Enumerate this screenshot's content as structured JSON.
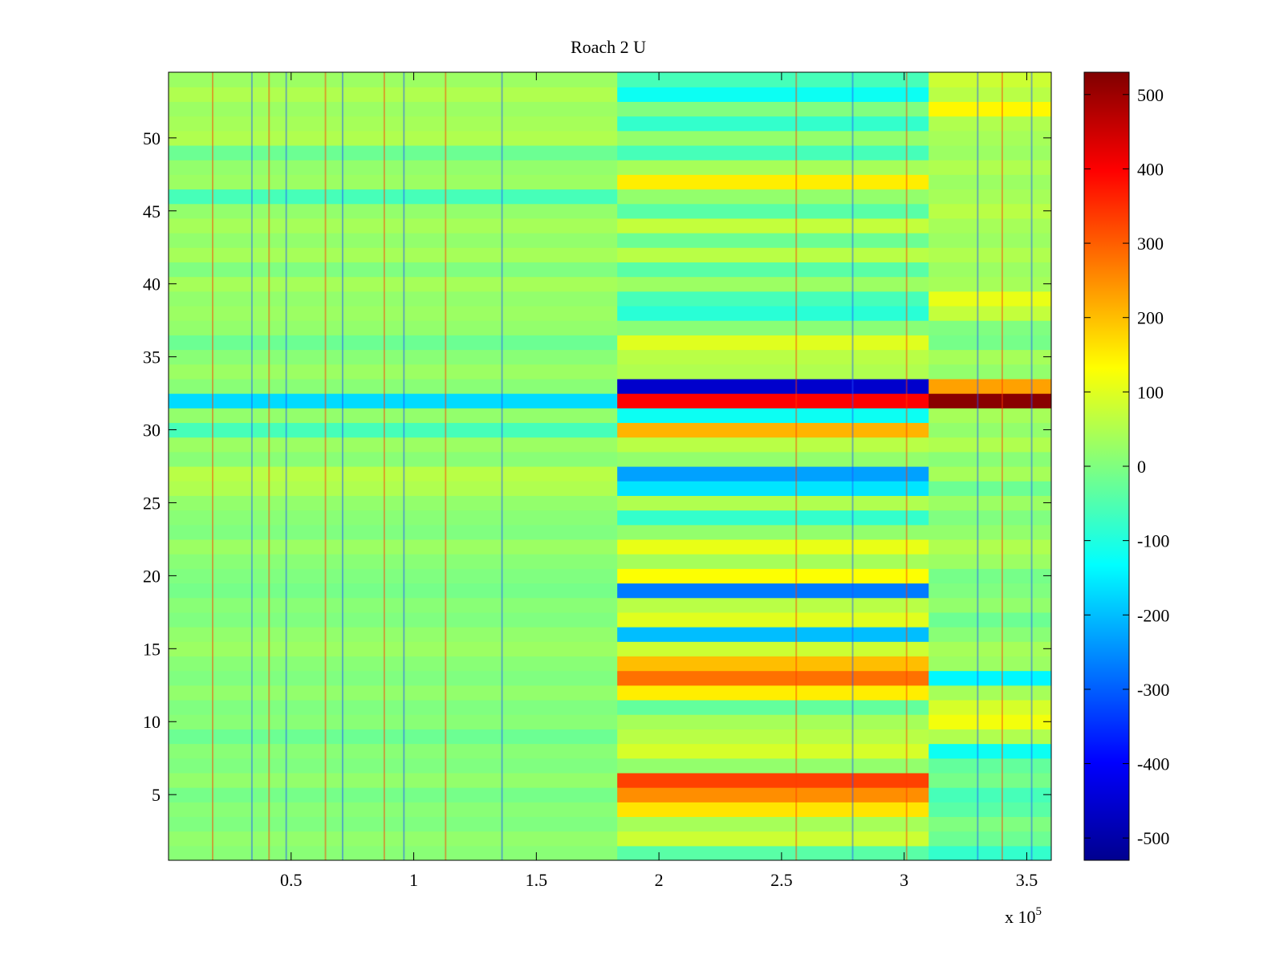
{
  "chart_data": {
    "type": "heatmap",
    "title": "Roach 2 U",
    "xlabel": "",
    "ylabel": "",
    "x_exponent_label": "x 10",
    "x_exponent_power": "5",
    "xlim": [
      0,
      3.6
    ],
    "ylim": [
      0.5,
      54.5
    ],
    "clim": [
      -530,
      530
    ],
    "colormap": "jet",
    "x_ticks": [
      0.5,
      1,
      1.5,
      2,
      2.5,
      3,
      3.5
    ],
    "x_tick_labels": [
      "0.5",
      "1",
      "1.5",
      "2",
      "2.5",
      "3",
      "3.5"
    ],
    "y_ticks": [
      5,
      10,
      15,
      20,
      25,
      30,
      35,
      40,
      45,
      50
    ],
    "y_tick_labels": [
      "5",
      "10",
      "15",
      "20",
      "25",
      "30",
      "35",
      "40",
      "45",
      "50"
    ],
    "colorbar_ticks": [
      500,
      400,
      300,
      200,
      100,
      0,
      -100,
      -200,
      -300,
      -400,
      -500
    ],
    "colorbar_tick_labels": [
      "500",
      "400",
      "300",
      "200",
      "100",
      "0",
      "-100",
      "-200",
      "-300",
      "-400",
      "-500"
    ],
    "segments_x": [
      0,
      1.83,
      3.1,
      3.6
    ],
    "row_values": [
      {
        "row": 1,
        "values": [
          10,
          -40,
          -80
        ]
      },
      {
        "row": 2,
        "values": [
          20,
          80,
          -20
        ]
      },
      {
        "row": 3,
        "values": [
          0,
          40,
          0
        ]
      },
      {
        "row": 4,
        "values": [
          10,
          160,
          -40
        ]
      },
      {
        "row": 5,
        "values": [
          -10,
          250,
          -60
        ]
      },
      {
        "row": 6,
        "values": [
          20,
          330,
          -10
        ]
      },
      {
        "row": 7,
        "values": [
          0,
          20,
          -30
        ]
      },
      {
        "row": 8,
        "values": [
          10,
          90,
          -120
        ]
      },
      {
        "row": 9,
        "values": [
          -20,
          60,
          50
        ]
      },
      {
        "row": 10,
        "values": [
          10,
          40,
          120
        ]
      },
      {
        "row": 11,
        "values": [
          0,
          -30,
          90
        ]
      },
      {
        "row": 12,
        "values": [
          20,
          150,
          40
        ]
      },
      {
        "row": 13,
        "values": [
          0,
          280,
          -140
        ]
      },
      {
        "row": 14,
        "values": [
          10,
          200,
          30
        ]
      },
      {
        "row": 15,
        "values": [
          30,
          80,
          40
        ]
      },
      {
        "row": 16,
        "values": [
          20,
          -200,
          10
        ]
      },
      {
        "row": 17,
        "values": [
          0,
          100,
          -20
        ]
      },
      {
        "row": 18,
        "values": [
          10,
          60,
          20
        ]
      },
      {
        "row": 19,
        "values": [
          -10,
          -270,
          0
        ]
      },
      {
        "row": 20,
        "values": [
          0,
          130,
          -10
        ]
      },
      {
        "row": 21,
        "values": [
          10,
          40,
          30
        ]
      },
      {
        "row": 22,
        "values": [
          30,
          110,
          50
        ]
      },
      {
        "row": 23,
        "values": [
          0,
          20,
          20
        ]
      },
      {
        "row": 24,
        "values": [
          10,
          -80,
          0
        ]
      },
      {
        "row": 25,
        "values": [
          20,
          50,
          30
        ]
      },
      {
        "row": 26,
        "values": [
          50,
          -160,
          -20
        ]
      },
      {
        "row": 27,
        "values": [
          60,
          -230,
          40
        ]
      },
      {
        "row": 28,
        "values": [
          10,
          20,
          10
        ]
      },
      {
        "row": 29,
        "values": [
          30,
          60,
          50
        ]
      },
      {
        "row": 30,
        "values": [
          -60,
          210,
          20
        ]
      },
      {
        "row": 31,
        "values": [
          20,
          -120,
          40
        ]
      },
      {
        "row": 32,
        "values": [
          -170,
          400,
          520
        ]
      },
      {
        "row": 33,
        "values": [
          10,
          -450,
          230
        ]
      },
      {
        "row": 34,
        "values": [
          30,
          50,
          20
        ]
      },
      {
        "row": 35,
        "values": [
          10,
          60,
          40
        ]
      },
      {
        "row": 36,
        "values": [
          -20,
          100,
          -10
        ]
      },
      {
        "row": 37,
        "values": [
          20,
          10,
          0
        ]
      },
      {
        "row": 38,
        "values": [
          30,
          -90,
          70
        ]
      },
      {
        "row": 39,
        "values": [
          20,
          -60,
          110
        ]
      },
      {
        "row": 40,
        "values": [
          40,
          30,
          40
        ]
      },
      {
        "row": 41,
        "values": [
          0,
          -40,
          30
        ]
      },
      {
        "row": 42,
        "values": [
          40,
          60,
          50
        ]
      },
      {
        "row": 43,
        "values": [
          20,
          -20,
          30
        ]
      },
      {
        "row": 44,
        "values": [
          40,
          70,
          40
        ]
      },
      {
        "row": 45,
        "values": [
          20,
          -40,
          60
        ]
      },
      {
        "row": 46,
        "values": [
          -60,
          20,
          40
        ]
      },
      {
        "row": 47,
        "values": [
          30,
          150,
          30
        ]
      },
      {
        "row": 48,
        "values": [
          20,
          40,
          50
        ]
      },
      {
        "row": 49,
        "values": [
          -20,
          -60,
          30
        ]
      },
      {
        "row": 50,
        "values": [
          50,
          20,
          40
        ]
      },
      {
        "row": 51,
        "values": [
          40,
          -80,
          50
        ]
      },
      {
        "row": 52,
        "values": [
          30,
          0,
          140
        ]
      },
      {
        "row": 53,
        "values": [
          50,
          -120,
          60
        ]
      },
      {
        "row": 54,
        "values": [
          30,
          -60,
          80
        ]
      }
    ],
    "vertical_streaks_x": [
      0.18,
      0.34,
      0.41,
      0.48,
      0.64,
      0.71,
      0.88,
      0.96,
      1.13,
      1.36,
      2.56,
      2.79,
      3.01,
      3.3,
      3.4,
      3.52
    ]
  }
}
